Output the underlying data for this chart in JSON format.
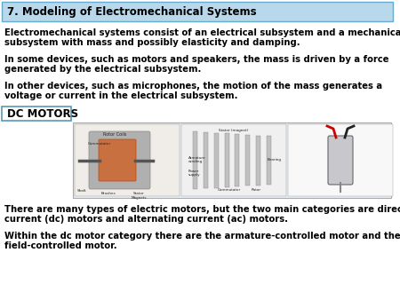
{
  "title": "7. Modeling of Electromechanical Systems",
  "title_bg": "#b8d8ec",
  "title_fontsize": 8.5,
  "body_fontsize": 7.2,
  "dc_label": "DC MOTORS",
  "dc_label_fontsize": 8.5,
  "dc_label_bg": "#ffffff",
  "dc_label_border": "#5599bb",
  "para1_l1": "Electromechanical systems consist of an electrical subsystem and a mechanical",
  "para1_l2": "subsystem with mass and possibly elasticity and damping.",
  "para2_l1": "In some devices, such as motors and speakers, the mass is driven by a force",
  "para2_l2": "generated by the electrical subsystem.",
  "para3_l1": "In other devices, such as microphones, the motion of the mass generates a",
  "para3_l2": "voltage or current in the electrical subsystem.",
  "para4_l1": "There are many types of electric motors, but the two main categories are direct",
  "para4_l2": "current (dc) motors and alternating current (ac) motors.",
  "para5_l1": "Within the dc motor category there are the armature-controlled motor and the",
  "para5_l2": "field-controlled motor.",
  "bg_color": "#ffffff",
  "text_color": "#000000",
  "img_bg": "#e8eef4",
  "img_border": "#aaaaaa"
}
